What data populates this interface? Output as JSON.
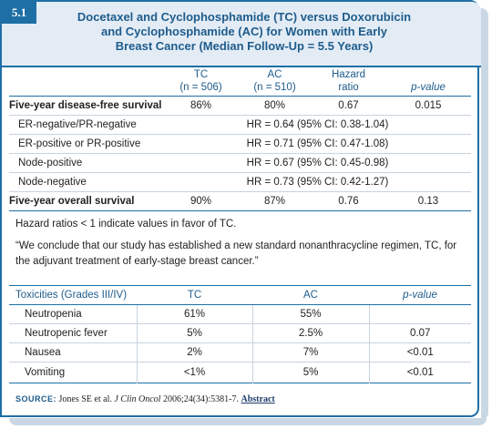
{
  "header": {
    "tag": "5.1",
    "title_lines": [
      "Docetaxel and Cyclophosphamide (TC) versus Doxorubicin",
      "and Cyclophosphamide (AC) for Women with Early",
      "Breast Cancer (Median Follow-Up = 5.5 Years)"
    ]
  },
  "table1": {
    "columns": [
      {
        "line1": "TC",
        "line2": "(n = 506)"
      },
      {
        "line1": "AC",
        "line2": "(n = 510)"
      },
      {
        "line1": "Hazard",
        "line2": "ratio"
      },
      {
        "line1": "",
        "line2": "p-value"
      }
    ],
    "rows": [
      {
        "label": "Five-year disease-free survival",
        "tc": "86%",
        "ac": "80%",
        "hr": "0.67",
        "p": "0.015"
      },
      {
        "label": "ER-negative/PR-negative",
        "span": "HR = 0.64 (95% CI: 0.38-1.04)"
      },
      {
        "label": "ER-positive or PR-positive",
        "span": "HR = 0.71 (95% CI: 0.47-1.08)"
      },
      {
        "label": "Node-positive",
        "span": "HR = 0.67 (95% CI: 0.45-0.98)"
      },
      {
        "label": "Node-negative",
        "span": "HR = 0.73 (95% CI: 0.42-1.27)"
      },
      {
        "label": "Five-year overall survival",
        "tc": "90%",
        "ac": "87%",
        "hr": "0.76",
        "p": "0.13"
      }
    ]
  },
  "note": "Hazard ratios < 1 indicate values in favor of TC.",
  "quote": "“We conclude that our study has established a new standard nonanthracycline regimen, TC, for the adjuvant treatment of early-stage breast cancer.”",
  "table2": {
    "headers": [
      "Toxicities (Grades III/IV)",
      "TC",
      "AC",
      "p-value"
    ],
    "rows": [
      {
        "label": "Neutropenia",
        "tc": "61%",
        "ac": "55%",
        "p": ""
      },
      {
        "label": "Neutropenic fever",
        "tc": "5%",
        "ac": "2.5%",
        "p": "0.07"
      },
      {
        "label": "Nausea",
        "tc": "2%",
        "ac": "7%",
        "p": "<0.01"
      },
      {
        "label": "Vomiting",
        "tc": "<1%",
        "ac": "5%",
        "p": "<0.01"
      }
    ]
  },
  "source": {
    "label": "SOURCE:",
    "authors": "Jones SE et al.",
    "journal": "J Clin Oncol",
    "citation": "2006;24(34):5381-7.",
    "link": "Abstract"
  }
}
